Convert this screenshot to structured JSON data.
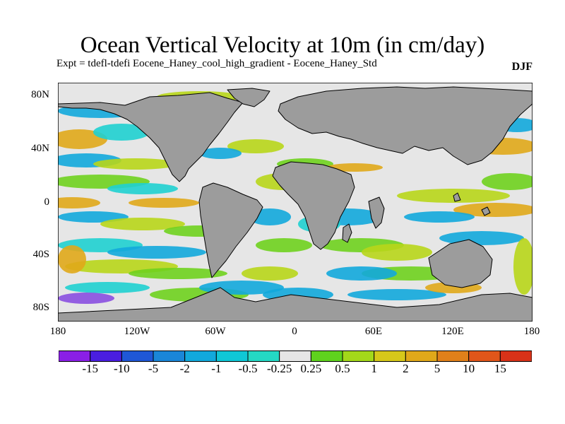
{
  "title": "Ocean Vertical Velocity at 10m (in cm/day)",
  "subtitle": "Expt = tdefl-tdefi  Eocene_Haney_cool_high_gradient - Eocene_Haney_Std",
  "season": "DJF",
  "lat_labels": [
    "80N",
    "40N",
    "0",
    "40S",
    "80S"
  ],
  "lon_labels": [
    "180",
    "120W",
    "60W",
    "0",
    "60E",
    "120E",
    "180"
  ],
  "colorbar": {
    "labels": [
      "-15",
      "-10",
      "-5",
      "-2",
      "-1",
      "-0.5",
      "-0.25",
      "0.25",
      "0.5",
      "1",
      "2",
      "5",
      "10",
      "15"
    ],
    "colors": [
      "#8a1fe6",
      "#4a1ee0",
      "#1f57d6",
      "#1a86d8",
      "#12a9dc",
      "#0fc7d6",
      "#24d8c4",
      "#e6e6e6",
      "#5fd21e",
      "#a3d81a",
      "#d6c81a",
      "#e0a81a",
      "#e0801a",
      "#e0561a",
      "#d83218"
    ]
  },
  "map_colors": {
    "land": "#9c9c9c",
    "neutral": "#e6e6e6",
    "blue": "#12a9dc",
    "cyan": "#1fd0d0",
    "green": "#6fd21e",
    "yellow": "#b8d61a",
    "orange": "#e0a81a",
    "red": "#e0761a",
    "purple": "#8a4fe0"
  }
}
